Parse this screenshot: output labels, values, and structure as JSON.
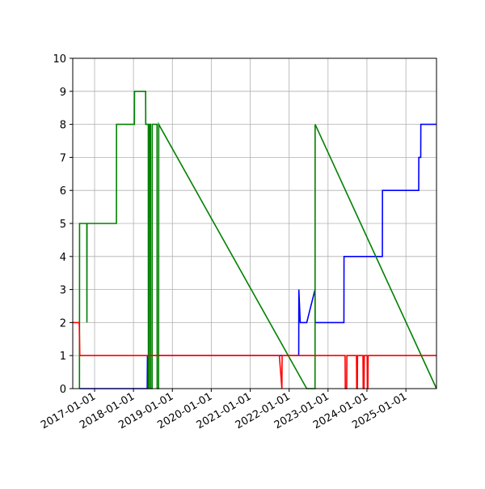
{
  "chart_data": {
    "type": "line",
    "xlim": [
      "2016-06-10",
      "2025-10-15"
    ],
    "xticks": [
      "2017-01-01",
      "2018-01-01",
      "2019-01-01",
      "2020-01-01",
      "2021-01-01",
      "2022-01-01",
      "2023-01-01",
      "2024-01-01",
      "2025-01-01"
    ],
    "ylim": [
      0,
      10
    ],
    "yticks": [
      0,
      1,
      2,
      3,
      4,
      5,
      6,
      7,
      8,
      9,
      10
    ],
    "grid": true,
    "series": [
      {
        "color": "#0000ff",
        "x": [
          "2016-08-15",
          "2018-05-10",
          "2018-05-12",
          "2022-04-01",
          "2022-04-02",
          "2022-04-15",
          "2022-06-15",
          "2022-09-01",
          "2022-09-02",
          "2023-05-30",
          "2023-05-31",
          "2024-05-25",
          "2024-05-26",
          "2025-05-01",
          "2025-05-02",
          "2025-05-20",
          "2025-05-21",
          "2025-10-15"
        ],
        "values": [
          0,
          0,
          1,
          1,
          3,
          2,
          2,
          3,
          2,
          2,
          4,
          4,
          6,
          6,
          7,
          7,
          8,
          8
        ]
      },
      {
        "color": "#008000",
        "x": [
          "2016-08-12",
          "2016-08-13",
          "2016-10-20",
          "2016-10-21",
          "2016-10-22",
          "2017-07-25",
          "2017-07-26",
          "2018-01-10",
          "2018-01-11",
          "2018-04-25",
          "2018-04-26",
          "2018-05-20",
          "2018-05-21",
          "2018-05-28",
          "2018-05-29",
          "2018-06-10",
          "2018-06-11",
          "2018-06-25",
          "2018-06-26",
          "2018-08-10",
          "2018-08-11",
          "2018-08-25",
          "2018-08-26",
          "2022-06-15",
          "2022-09-01",
          "2022-09-02",
          "2025-10-15"
        ],
        "values": [
          0,
          5,
          5,
          2,
          5,
          5,
          8,
          8,
          9,
          9,
          8,
          8,
          0,
          0,
          8,
          8,
          0,
          0,
          8,
          8,
          0,
          0,
          8,
          0,
          0,
          8,
          0
        ]
      },
      {
        "color": "#ff0000",
        "x": [
          "2016-06-10",
          "2016-08-10",
          "2016-08-15",
          "2021-10-01",
          "2021-10-25",
          "2021-10-27",
          "2023-06-10",
          "2023-06-12",
          "2023-06-25",
          "2023-06-27",
          "2023-09-25",
          "2023-09-27",
          "2023-10-03",
          "2023-10-05",
          "2023-11-25",
          "2023-11-27",
          "2023-12-05",
          "2023-12-07",
          "2024-01-03",
          "2024-01-05",
          "2024-01-10",
          "2024-01-12",
          "2025-10-15"
        ],
        "values": [
          2,
          2,
          1,
          1,
          0,
          1,
          1,
          0,
          0,
          1,
          1,
          0,
          0,
          1,
          1,
          0,
          0,
          1,
          1,
          0,
          0,
          1,
          1
        ]
      }
    ]
  }
}
